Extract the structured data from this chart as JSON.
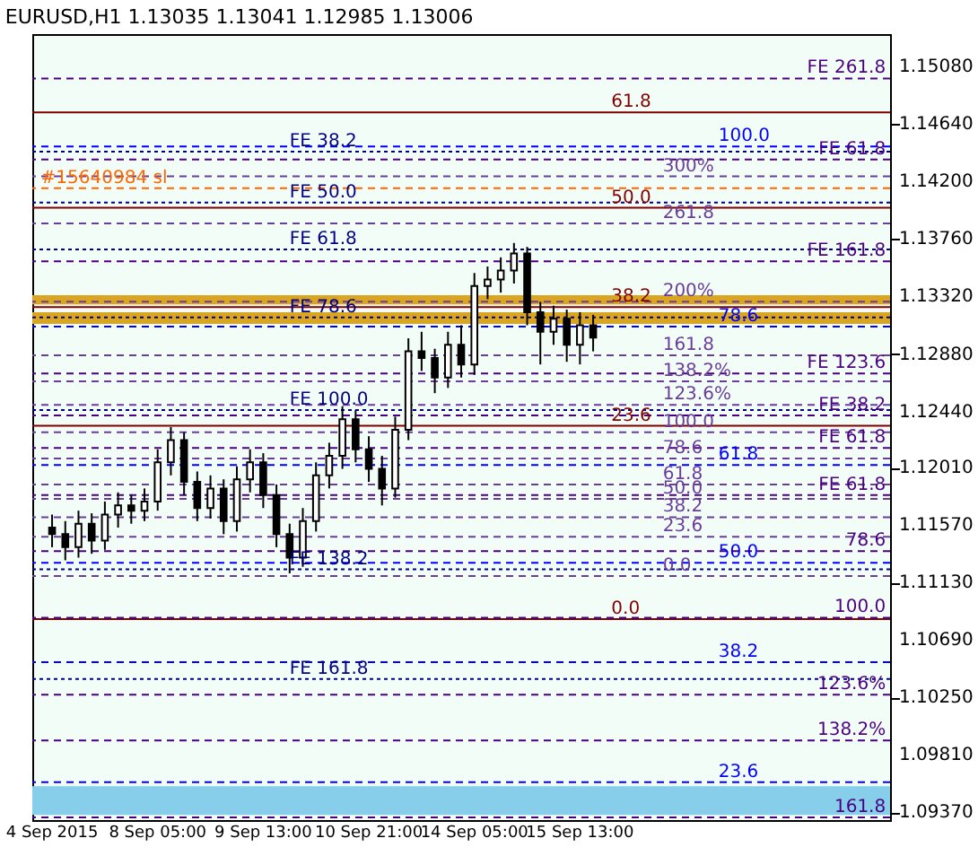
{
  "chart_data": {
    "type": "candlestick",
    "title": "EURUSD,H1  1.13035 1.13041 1.12985 1.13006",
    "categories": [
      "4 Sep 2015",
      null,
      null,
      null,
      null,
      null,
      null,
      null,
      "8 Sep 05:00",
      null,
      null,
      null,
      null,
      null,
      null,
      null,
      "9 Sep 13:00",
      null,
      null,
      null,
      null,
      null,
      null,
      null,
      "10 Sep 21:00",
      null,
      null,
      null,
      null,
      null,
      null,
      null,
      "14 Sep 05:00",
      null,
      null,
      null,
      null,
      null,
      null,
      null,
      "15 Sep 13:00",
      null,
      null,
      null,
      null,
      null,
      null,
      null,
      null,
      null,
      null,
      null,
      null,
      null,
      null,
      null,
      null,
      null,
      null,
      null,
      null,
      null,
      null
    ],
    "ohlc": [
      [
        1.1155,
        1.1165,
        1.114,
        1.115
      ],
      [
        1.115,
        1.116,
        1.113,
        1.114
      ],
      [
        1.114,
        1.1168,
        1.1132,
        1.1158
      ],
      [
        1.1158,
        1.1166,
        1.1135,
        1.1145
      ],
      [
        1.1145,
        1.1175,
        1.1138,
        1.1165
      ],
      [
        1.1165,
        1.1182,
        1.1155,
        1.1172
      ],
      [
        1.1172,
        1.118,
        1.1158,
        1.1168
      ],
      [
        1.1168,
        1.1185,
        1.116,
        1.1175
      ],
      [
        1.1175,
        1.1215,
        1.1168,
        1.1205
      ],
      [
        1.1205,
        1.1232,
        1.1195,
        1.1222
      ],
      [
        1.1222,
        1.1228,
        1.118,
        1.119
      ],
      [
        1.119,
        1.1198,
        1.116,
        1.117
      ],
      [
        1.117,
        1.1195,
        1.1162,
        1.1185
      ],
      [
        1.1185,
        1.1192,
        1.115,
        1.116
      ],
      [
        1.116,
        1.1202,
        1.1152,
        1.1192
      ],
      [
        1.1192,
        1.1215,
        1.1182,
        1.1205
      ],
      [
        1.1205,
        1.1212,
        1.117,
        1.118
      ],
      [
        1.118,
        1.1188,
        1.114,
        1.115
      ],
      [
        1.115,
        1.1158,
        1.112,
        1.1132
      ],
      [
        1.1132,
        1.117,
        1.1125,
        1.116
      ],
      [
        1.116,
        1.1205,
        1.1152,
        1.1195
      ],
      [
        1.1195,
        1.122,
        1.1185,
        1.121
      ],
      [
        1.121,
        1.1248,
        1.12,
        1.1238
      ],
      [
        1.1238,
        1.1245,
        1.1205,
        1.1215
      ],
      [
        1.1215,
        1.1225,
        1.119,
        1.12
      ],
      [
        1.12,
        1.121,
        1.1172,
        1.1185
      ],
      [
        1.1185,
        1.124,
        1.1178,
        1.123
      ],
      [
        1.123,
        1.13,
        1.1222,
        1.129
      ],
      [
        1.129,
        1.1305,
        1.1275,
        1.1285
      ],
      [
        1.1285,
        1.1292,
        1.1258,
        1.127
      ],
      [
        1.127,
        1.1305,
        1.1262,
        1.1295
      ],
      [
        1.1295,
        1.131,
        1.127,
        1.128
      ],
      [
        1.128,
        1.135,
        1.1272,
        1.134
      ],
      [
        1.134,
        1.1355,
        1.133,
        1.1345
      ],
      [
        1.1345,
        1.1362,
        1.1335,
        1.1352
      ],
      [
        1.1352,
        1.1373,
        1.1342,
        1.1365
      ],
      [
        1.1365,
        1.137,
        1.131,
        1.132
      ],
      [
        1.132,
        1.1328,
        1.128,
        1.1305
      ],
      [
        1.1305,
        1.1325,
        1.1295,
        1.1315
      ],
      [
        1.1315,
        1.1322,
        1.1282,
        1.1295
      ],
      [
        1.1295,
        1.132,
        1.128,
        1.131
      ],
      [
        1.131,
        1.1318,
        1.129,
        1.13006
      ],
      null,
      null,
      null,
      null,
      null,
      null,
      null,
      null,
      null,
      null,
      null,
      null,
      null,
      null,
      null,
      null,
      null,
      null,
      null,
      null,
      null
    ],
    "ylim": [
      1.0931,
      1.1533
    ],
    "yticks": [
      {
        "value": 1.1508,
        "label": "1.15080"
      },
      {
        "value": 1.1464,
        "label": "1.14640"
      },
      {
        "value": 1.142,
        "label": "1.14200"
      },
      {
        "value": 1.1376,
        "label": "1.13760"
      },
      {
        "value": 1.1332,
        "label": "1.13320"
      },
      {
        "value": 1.1288,
        "label": "1.12880"
      },
      {
        "value": 1.1244,
        "label": "1.12440"
      },
      {
        "value": 1.1201,
        "label": "1.12010"
      },
      {
        "value": 1.1157,
        "label": "1.11570"
      },
      {
        "value": 1.1113,
        "label": "1.11130"
      },
      {
        "value": 1.1069,
        "label": "1.10690"
      },
      {
        "value": 1.1025,
        "label": "1.10250"
      },
      {
        "value": 1.0981,
        "label": "1.09810"
      },
      {
        "value": 1.0937,
        "label": "1.09370"
      }
    ],
    "grid": false,
    "bands": [
      {
        "axis": "y",
        "from": 1.1326,
        "to": 1.1333,
        "color": "#daa520"
      },
      {
        "axis": "y",
        "from": 1.1311,
        "to": 1.132,
        "color": "#daa520"
      },
      {
        "axis": "y",
        "from": 1.0935,
        "to": 1.0957,
        "color": "#87ceeb"
      }
    ],
    "ref_lines": [
      {
        "axis": "y",
        "value": 1.1473,
        "color": "#800000",
        "line_style": "solid"
      },
      {
        "axis": "y",
        "value": 1.14,
        "color": "#800000",
        "line_style": "solid"
      },
      {
        "axis": "y",
        "value": 1.1324,
        "color": "#800000",
        "line_style": "solid"
      },
      {
        "axis": "y",
        "value": 1.1233,
        "color": "#800000",
        "line_style": "solid"
      },
      {
        "axis": "y",
        "value": 1.1085,
        "color": "#800000",
        "line_style": "solid"
      },
      {
        "axis": "y",
        "value": 1.1447,
        "color": "#0000ff",
        "line_style": "dashed"
      },
      {
        "axis": "y",
        "value": 1.1309,
        "color": "#0000ff",
        "line_style": "dashed"
      },
      {
        "axis": "y",
        "value": 1.1203,
        "color": "#0000ff",
        "line_style": "dashed"
      },
      {
        "axis": "y",
        "value": 1.1128,
        "color": "#0000ff",
        "line_style": "dashed"
      },
      {
        "axis": "y",
        "value": 1.1052,
        "color": "#0000ff",
        "line_style": "dashed"
      },
      {
        "axis": "y",
        "value": 1.096,
        "color": "#0000ff",
        "line_style": "dashed"
      },
      {
        "axis": "y",
        "value": 1.1424,
        "color": "#6a3d9a",
        "line_style": "dashed"
      },
      {
        "axis": "y",
        "value": 1.1388,
        "color": "#6a3d9a",
        "line_style": "dashed"
      },
      {
        "axis": "y",
        "value": 1.1328,
        "color": "#6a3d9a",
        "line_style": "dashed"
      },
      {
        "axis": "y",
        "value": 1.1287,
        "color": "#6a3d9a",
        "line_style": "dashed"
      },
      {
        "axis": "y",
        "value": 1.1267,
        "color": "#6a3d9a",
        "line_style": "dashed"
      },
      {
        "axis": "y",
        "value": 1.1249,
        "color": "#6a3d9a",
        "line_style": "dashed"
      },
      {
        "axis": "y",
        "value": 1.1228,
        "color": "#6a3d9a",
        "line_style": "dashed"
      },
      {
        "axis": "y",
        "value": 1.1208,
        "color": "#6a3d9a",
        "line_style": "dashed"
      },
      {
        "axis": "y",
        "value": 1.1188,
        "color": "#6a3d9a",
        "line_style": "dashed"
      },
      {
        "axis": "y",
        "value": 1.1177,
        "color": "#6a3d9a",
        "line_style": "dashed"
      },
      {
        "axis": "y",
        "value": 1.1163,
        "color": "#6a3d9a",
        "line_style": "dashed"
      },
      {
        "axis": "y",
        "value": 1.1148,
        "color": "#6a3d9a",
        "line_style": "dashed"
      },
      {
        "axis": "y",
        "value": 1.1118,
        "color": "#6a3d9a",
        "line_style": "dashed"
      },
      {
        "axis": "y",
        "value": 1.1499,
        "color": "#4b0082",
        "line_style": "dashed"
      },
      {
        "axis": "y",
        "value": 1.1437,
        "color": "#4b0082",
        "line_style": "dashed"
      },
      {
        "axis": "y",
        "value": 1.1359,
        "color": "#4b0082",
        "line_style": "dashed"
      },
      {
        "axis": "y",
        "value": 1.1273,
        "color": "#4b0082",
        "line_style": "dashed"
      },
      {
        "axis": "y",
        "value": 1.1241,
        "color": "#4b0082",
        "line_style": "dashed"
      },
      {
        "axis": "y",
        "value": 1.1216,
        "color": "#4b0082",
        "line_style": "dashed"
      },
      {
        "axis": "y",
        "value": 1.118,
        "color": "#4b0082",
        "line_style": "dashed"
      },
      {
        "axis": "y",
        "value": 1.1137,
        "color": "#4b0082",
        "line_style": "dashed"
      },
      {
        "axis": "y",
        "value": 1.1086,
        "color": "#4b0082",
        "line_style": "dashed"
      },
      {
        "axis": "y",
        "value": 1.1027,
        "color": "#4b0082",
        "line_style": "dashed"
      },
      {
        "axis": "y",
        "value": 1.0992,
        "color": "#4b0082",
        "line_style": "dashed"
      },
      {
        "axis": "y",
        "value": 1.0933,
        "color": "#4b0082",
        "line_style": "dashed"
      },
      {
        "axis": "y",
        "value": 1.1443,
        "color": "#000080",
        "line_style": "dotted"
      },
      {
        "axis": "y",
        "value": 1.1404,
        "color": "#000080",
        "line_style": "dotted"
      },
      {
        "axis": "y",
        "value": 1.1368,
        "color": "#000080",
        "line_style": "dotted"
      },
      {
        "axis": "y",
        "value": 1.1316,
        "color": "#000080",
        "line_style": "dotted"
      },
      {
        "axis": "y",
        "value": 1.1245,
        "color": "#000080",
        "line_style": "dotted"
      },
      {
        "axis": "y",
        "value": 1.1123,
        "color": "#000080",
        "line_style": "dotted"
      },
      {
        "axis": "y",
        "value": 1.1039,
        "color": "#000080",
        "line_style": "dotted"
      },
      {
        "axis": "y",
        "value": 1.1415,
        "color": "#ff6600",
        "line_style": "dashed"
      }
    ],
    "annotations": [
      {
        "text": "61.8",
        "y": 1.1473
      },
      {
        "text": "50.0",
        "y": 1.14
      },
      {
        "text": "38.2",
        "y": 1.1324
      },
      {
        "text": "23.6",
        "y": 1.1233
      },
      {
        "text": "0.0",
        "y": 1.1085
      },
      {
        "text": "100.0",
        "y": 1.1447
      },
      {
        "text": "78.6",
        "y": 1.1309
      },
      {
        "text": "61.8",
        "y": 1.1203
      },
      {
        "text": "50.0",
        "y": 1.1128
      },
      {
        "text": "38.2",
        "y": 1.1052
      },
      {
        "text": "23.6",
        "y": 1.096
      },
      {
        "text": "300%",
        "y": 1.1424
      },
      {
        "text": "261.8",
        "y": 1.1388
      },
      {
        "text": "200%",
        "y": 1.1328
      },
      {
        "text": "161.8",
        "y": 1.1287
      },
      {
        "text": "138.2%",
        "y": 1.1267
      },
      {
        "text": "123.6%",
        "y": 1.1249
      },
      {
        "text": "100.0",
        "y": 1.1228
      },
      {
        "text": "78.6",
        "y": 1.1208
      },
      {
        "text": "61.8",
        "y": 1.1188
      },
      {
        "text": "50.0",
        "y": 1.1177
      },
      {
        "text": "38.2",
        "y": 1.1163
      },
      {
        "text": "23.6",
        "y": 1.1148
      },
      {
        "text": "0.0",
        "y": 1.1118
      },
      {
        "text": "FE 261.8",
        "y": 1.1499
      },
      {
        "text": "FE 61.8",
        "y": 1.1437
      },
      {
        "text": "FE 161.8",
        "y": 1.1359
      },
      {
        "text": "FE 123.6",
        "y": 1.1273
      },
      {
        "text": "FE 38.2",
        "y": 1.1241
      },
      {
        "text": "FE 61.8",
        "y": 1.1216
      },
      {
        "text": "FE 61.8",
        "y": 1.118
      },
      {
        "text": "78.6",
        "y": 1.1137
      },
      {
        "text": "100.0",
        "y": 1.1086
      },
      {
        "text": "123.6%",
        "y": 1.1027
      },
      {
        "text": "138.2%",
        "y": 1.0992
      },
      {
        "text": "161.8",
        "y": 1.0933
      },
      {
        "text": "FE 38.2",
        "y": 1.1443
      },
      {
        "text": "FE 50.0",
        "y": 1.1404
      },
      {
        "text": "FE 61.8",
        "y": 1.1368
      },
      {
        "text": "FE 78.6",
        "y": 1.1316
      },
      {
        "text": "FE 100.0",
        "y": 1.1245
      },
      {
        "text": "FE 138.2",
        "y": 1.1123
      },
      {
        "text": "FE 161.8",
        "y": 1.1039
      },
      {
        "text": "#15640984 sl",
        "y": 1.1415
      }
    ]
  }
}
